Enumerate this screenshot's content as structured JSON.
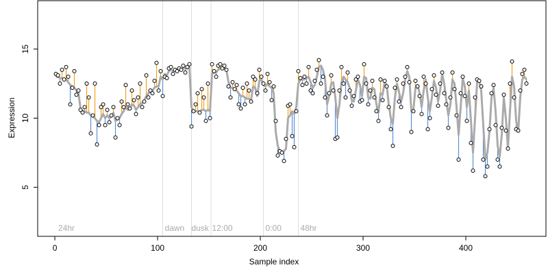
{
  "chart_data": {
    "type": "scatter",
    "x_label": "Sample index",
    "y_label": "Expression",
    "xlim": [
      -16.7,
      478
    ],
    "ylim": [
      1.45,
      18.5
    ],
    "xticks": [
      0,
      100,
      200,
      300,
      400
    ],
    "yticks": [
      5,
      10,
      15
    ],
    "x": [
      1,
      3,
      5,
      7,
      9,
      11,
      13,
      15,
      17,
      19,
      21,
      23,
      25,
      27,
      29,
      31,
      33,
      35,
      37,
      39,
      41,
      43,
      45,
      47,
      49,
      51,
      53,
      55,
      57,
      59,
      61,
      63,
      65,
      67,
      69,
      71,
      73,
      75,
      77,
      79,
      81,
      83,
      85,
      87,
      89,
      91,
      93,
      95,
      97,
      99,
      101,
      103,
      105,
      107,
      109,
      111,
      113,
      115,
      117,
      119,
      121,
      123,
      125,
      127,
      129,
      131,
      133,
      135,
      137,
      139,
      141,
      143,
      145,
      147,
      149,
      151,
      153,
      155,
      157,
      159,
      161,
      163,
      165,
      167,
      169,
      171,
      173,
      175,
      177,
      179,
      181,
      183,
      185,
      187,
      189,
      191,
      193,
      195,
      197,
      199,
      201,
      203,
      205,
      207,
      209,
      211,
      213,
      215,
      217,
      219,
      221,
      223,
      225,
      227,
      229,
      231,
      233,
      235,
      237,
      239,
      241,
      243,
      245,
      247,
      249,
      251,
      253,
      255,
      257,
      259,
      261,
      263,
      265,
      267,
      269,
      271,
      273,
      275,
      277,
      279,
      281,
      283,
      285,
      287,
      289,
      291,
      293,
      295,
      297,
      299,
      301,
      303,
      305,
      307,
      309,
      311,
      313,
      315,
      317,
      319,
      321,
      323,
      325,
      327,
      329,
      331,
      333,
      335,
      337,
      339,
      341,
      343,
      345,
      347,
      349,
      351,
      353,
      355,
      357,
      359,
      361,
      363,
      365,
      367,
      369,
      371,
      373,
      375,
      377,
      379,
      381,
      383,
      385,
      387,
      389,
      391,
      393,
      395,
      397,
      399,
      401,
      403,
      405,
      407,
      409,
      411,
      413,
      415,
      417,
      419,
      421,
      423,
      425,
      427,
      429,
      431,
      433,
      435,
      437,
      439,
      441,
      443,
      445,
      447,
      449,
      451,
      453,
      455,
      457,
      459
    ],
    "series": [
      {
        "name": "observed",
        "color": "#000000",
        "values": [
          13.2,
          13.1,
          12.5,
          13.5,
          12.8,
          13.7,
          13.0,
          11.0,
          12.2,
          13.4,
          11.7,
          12.0,
          10.6,
          10.4,
          10.8,
          12.5,
          11.5,
          8.9,
          10.2,
          12.5,
          8.1,
          9.5,
          10.8,
          11.0,
          9.5,
          10.6,
          9.7,
          10.2,
          10.8,
          8.6,
          10.0,
          9.5,
          11.2,
          10.8,
          12.4,
          11.0,
          10.7,
          12.0,
          11.3,
          10.3,
          11.5,
          12.5,
          10.8,
          11.2,
          13.1,
          11.5,
          12.0,
          11.8,
          12.7,
          14.0,
          12.0,
          13.4,
          11.6,
          13.0,
          12.9,
          13.6,
          13.7,
          13.2,
          13.5,
          13.4,
          13.6,
          13.5,
          13.8,
          13.3,
          13.7,
          13.9,
          9.4,
          10.5,
          11.0,
          11.8,
          10.4,
          12.1,
          11.5,
          9.8,
          12.5,
          10.0,
          13.9,
          13.4,
          13.0,
          13.8,
          13.9,
          13.6,
          13.8,
          13.5,
          12.3,
          11.5,
          12.6,
          12.1,
          12.4,
          11.0,
          10.7,
          12.2,
          11.0,
          12.5,
          12.0,
          11.2,
          13.0,
          12.8,
          11.8,
          13.5,
          13.0,
          12.5,
          12.0,
          13.2,
          12.6,
          11.3,
          12.3,
          9.8,
          7.3,
          7.6,
          7.5,
          6.9,
          8.5,
          10.9,
          11.0,
          8.7,
          7.9,
          10.5,
          13.4,
          12.9,
          12.4,
          13.0,
          12.5,
          13.7,
          12.0,
          11.8,
          12.7,
          13.5,
          14.2,
          12.5,
          13.0,
          11.5,
          10.2,
          11.8,
          13.1,
          12.0,
          8.5,
          8.6,
          12.0,
          13.7,
          12.5,
          11.5,
          13.3,
          12.0,
          10.9,
          11.6,
          12.8,
          13.0,
          11.2,
          11.3,
          13.9,
          12.5,
          11.0,
          12.0,
          12.7,
          11.5,
          10.5,
          9.8,
          12.8,
          11.3,
          12.7,
          12.3,
          10.8,
          9.2,
          8.0,
          12.2,
          12.8,
          11.2,
          10.8,
          12.5,
          13.0,
          13.7,
          12.6,
          9.0,
          10.5,
          12.7,
          12.3,
          11.6,
          10.3,
          13.0,
          12.5,
          9.2,
          10.0,
          12.1,
          13.1,
          11.7,
          10.9,
          12.5,
          13.3,
          11.8,
          11.0,
          9.3,
          11.5,
          13.3,
          12.1,
          10.2,
          7.0,
          11.8,
          13.0,
          11.6,
          9.8,
          12.5,
          8.2,
          6.2,
          11.5,
          12.8,
          12.7,
          12.3,
          7.0,
          5.8,
          6.5,
          9.2,
          11.8,
          12.4,
          9.5,
          7.0,
          6.5,
          9.3,
          11.7,
          9.1,
          7.8,
          12.5,
          14.1,
          11.5,
          9.2,
          9.1,
          12.0,
          13.2,
          13.5,
          12.5
        ]
      },
      {
        "name": "fit",
        "color": "#aaaaaa",
        "values": [
          13.0,
          13.0,
          12.9,
          12.9,
          12.8,
          12.8,
          12.6,
          12.4,
          12.3,
          12.2,
          12.0,
          11.8,
          10.7,
          10.5,
          10.5,
          10.4,
          10.4,
          10.2,
          10.1,
          10.0,
          9.8,
          9.7,
          10.0,
          10.3,
          10.0,
          10.2,
          10.0,
          10.1,
          10.4,
          9.8,
          9.9,
          10.0,
          10.3,
          10.5,
          10.8,
          10.6,
          10.7,
          11.0,
          10.9,
          10.6,
          10.8,
          11.0,
          11.1,
          11.3,
          11.6,
          11.8,
          11.9,
          12.0,
          12.2,
          12.3,
          12.3,
          13.0,
          12.8,
          13.2,
          13.1,
          13.4,
          13.5,
          13.4,
          13.5,
          13.5,
          13.5,
          13.5,
          13.6,
          13.6,
          13.6,
          13.7,
          10.8,
          10.5,
          10.5,
          10.5,
          10.5,
          10.6,
          10.6,
          10.5,
          10.6,
          10.5,
          13.2,
          13.3,
          13.3,
          13.5,
          13.6,
          13.6,
          13.6,
          13.5,
          12.6,
          12.2,
          12.2,
          12.1,
          12.0,
          11.8,
          11.6,
          11.6,
          11.5,
          11.4,
          11.4,
          11.3,
          12.3,
          12.2,
          11.6,
          12.7,
          12.8,
          12.4,
          12.3,
          12.5,
          12.3,
          12.2,
          11.8,
          9.0,
          8.0,
          7.6,
          7.6,
          7.6,
          7.8,
          10.0,
          10.2,
          10.5,
          10.3,
          10.8,
          12.5,
          12.8,
          12.8,
          12.8,
          12.9,
          13.0,
          12.6,
          12.2,
          12.4,
          13.0,
          13.7,
          13.8,
          13.5,
          12.8,
          11.0,
          11.6,
          12.5,
          12.6,
          11.5,
          10.0,
          11.0,
          12.6,
          13.0,
          12.8,
          12.6,
          12.2,
          11.3,
          11.2,
          12.0,
          12.8,
          12.4,
          11.6,
          13.0,
          12.9,
          11.5,
          11.4,
          12.2,
          12.1,
          11.0,
          10.4,
          11.8,
          11.7,
          12.6,
          12.4,
          11.0,
          10.0,
          9.6,
          11.5,
          12.5,
          11.9,
          11.2,
          11.8,
          12.8,
          13.4,
          13.0,
          10.5,
          10.6,
          12.2,
          12.4,
          11.8,
          10.8,
          12.0,
          12.8,
          11.5,
          10.5,
          11.5,
          12.7,
          12.2,
          11.2,
          12.0,
          13.2,
          12.5,
          11.3,
          10.2,
          11.0,
          12.8,
          12.5,
          10.8,
          8.8,
          10.8,
          12.9,
          12.3,
          10.8,
          12.0,
          9.8,
          7.5,
          10.0,
          12.6,
          12.7,
          12.0,
          9.5,
          7.0,
          7.5,
          9.0,
          11.5,
          12.2,
          10.5,
          8.0,
          7.2,
          8.8,
          11.5,
          10.0,
          7.8,
          10.5,
          13.0,
          12.3,
          9.8,
          9.0,
          11.5,
          12.8,
          13.0,
          12.8
        ]
      }
    ],
    "above_color": "#f0a020",
    "below_color": "#5b8fd9",
    "vlines": [
      105,
      133,
      152,
      203,
      237
    ],
    "annotations": [
      {
        "x": 3.3,
        "label": "24hr"
      },
      {
        "x": 107,
        "label": "dawn"
      },
      {
        "x": 133,
        "label": "dusk"
      },
      {
        "x": 153,
        "label": "12:00"
      },
      {
        "x": 205,
        "label": "0:00"
      },
      {
        "x": 239,
        "label": "48hr"
      }
    ]
  }
}
